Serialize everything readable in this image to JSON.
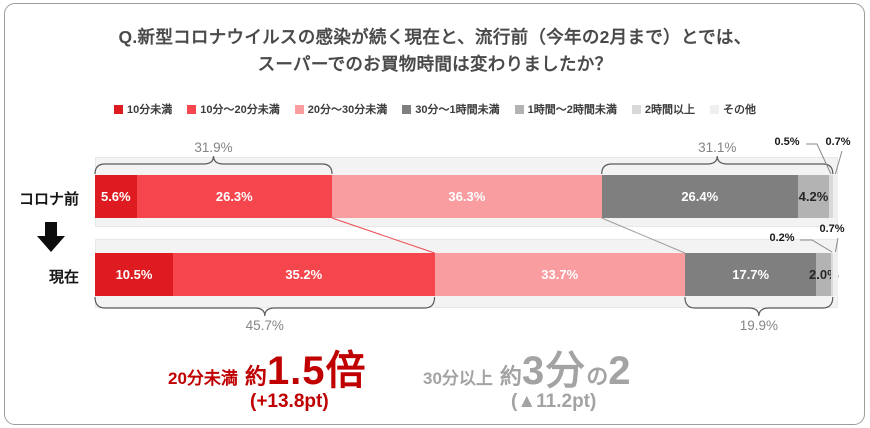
{
  "title": {
    "line1": "Q.新型コロナウイルスの感染が続く現在と、流行前（今年の2月まで）とでは、",
    "line2": "スーパーでのお買物時間は変わりましたか？"
  },
  "colors": {
    "annotation_increase": "#c00000",
    "annotation_decrease": "#a3a3a3",
    "band_background": "#f3f3f3",
    "connector_red": "#ee4b52",
    "connector_gray": "#9d9d9d",
    "bracket_stroke": "#5a5a5a"
  },
  "chart_data": {
    "type": "bar",
    "subtype": "horizontal-stacked-100pct",
    "unit": "%",
    "categories": [
      "コロナ前",
      "現在"
    ],
    "flow_arrow": "コロナ前 → 現在",
    "series": [
      {
        "name": "10分未満",
        "color": "#dd1b21",
        "text_color": "#ffffff",
        "values": [
          5.6,
          10.5
        ]
      },
      {
        "name": "10分～20分未満",
        "color": "#f5464e",
        "text_color": "#ffffff",
        "values": [
          26.3,
          35.2
        ]
      },
      {
        "name": "20分～30分未満",
        "color": "#f99da1",
        "text_color": "#ffffff",
        "values": [
          36.3,
          33.7
        ]
      },
      {
        "name": "30分～1時間未満",
        "color": "#7f7f7f",
        "text_color": "#ffffff",
        "values": [
          26.4,
          17.7
        ]
      },
      {
        "name": "1時間～2時間未満",
        "color": "#b3b3b3",
        "text_color": "#262626",
        "values": [
          4.2,
          2.0
        ]
      },
      {
        "name": "2時間以上",
        "color": "#d9d9d9",
        "text_color": "#262626",
        "values": [
          0.5,
          0.2
        ]
      },
      {
        "name": "その他",
        "color": "#efefef",
        "text_color": "#262626",
        "values": [
          0.7,
          0.7
        ]
      }
    ],
    "value_labels": [
      [
        "5.6%",
        "26.3%",
        "36.3%",
        "26.4%",
        "4.2%",
        "0.5%",
        "0.7%"
      ],
      [
        "10.5%",
        "35.2%",
        "33.7%",
        "17.7%",
        "2.0%",
        "0.2%",
        "0.7%"
      ]
    ],
    "brackets": [
      {
        "row": 0,
        "from_series": 0,
        "to_series": 1,
        "position": "above",
        "label": "31.9%"
      },
      {
        "row": 0,
        "from_series": 3,
        "to_series": 5,
        "position": "above",
        "label": "31.1%"
      },
      {
        "row": 1,
        "from_series": 0,
        "to_series": 1,
        "position": "below",
        "label": "45.7%"
      },
      {
        "row": 1,
        "from_series": 3,
        "to_series": 5,
        "position": "below",
        "label": "19.9%"
      }
    ],
    "callouts": [
      {
        "row": 0,
        "series": 5,
        "label": "0.5%"
      },
      {
        "row": 0,
        "series": 6,
        "label": "0.7%"
      },
      {
        "row": 1,
        "series": 5,
        "label": "0.2%"
      },
      {
        "row": 1,
        "series": 6,
        "label": "0.7%"
      }
    ],
    "connectors": [
      {
        "after_series": 1,
        "color": "#ee4b52"
      },
      {
        "after_series": 2,
        "color": "#9d9d9d"
      }
    ],
    "legend_position": "top"
  },
  "annotations": {
    "left": {
      "prefix": "20分未満",
      "approx": "約",
      "big": "1.5倍",
      "delta": "(+13.8pt)"
    },
    "right": {
      "prefix": "30分以上",
      "approx": "約",
      "big1": "3分",
      "small": "の",
      "big2": "2",
      "delta": "(▲11.2pt)"
    }
  }
}
